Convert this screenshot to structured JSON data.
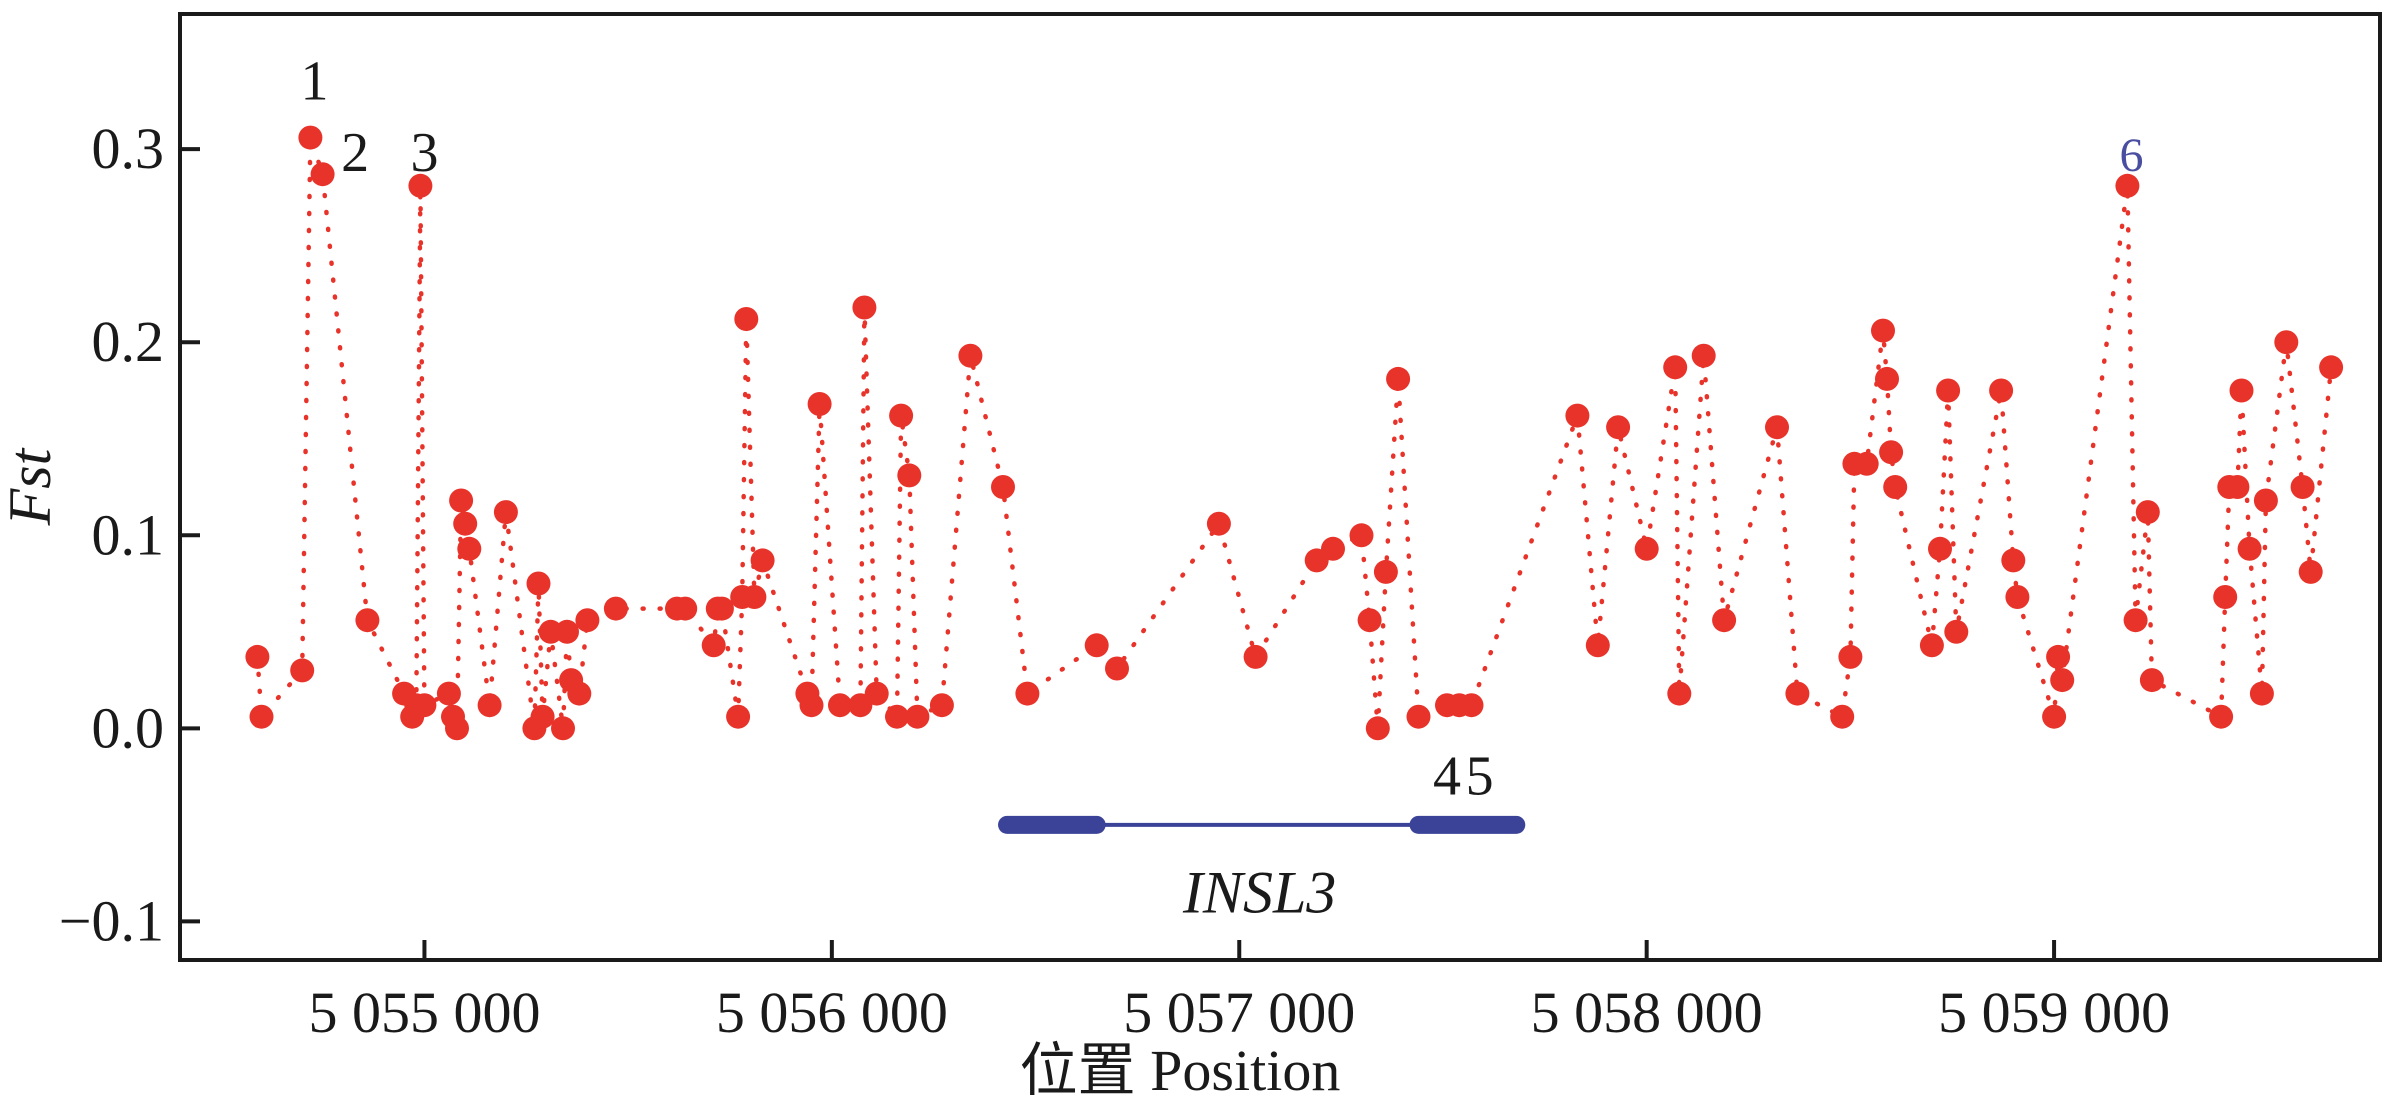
{
  "chart_data": {
    "type": "scatter",
    "title": "",
    "xlabel": "位置  Position",
    "ylabel": "Fst",
    "xlim": [
      5054400,
      5059800
    ],
    "ylim": [
      -0.12,
      0.37
    ],
    "xticks": [
      5055000,
      5056000,
      5057000,
      5058000,
      5059000
    ],
    "xtick_labels": [
      "5 055 000",
      "5 056 000",
      "5 057 000",
      "5 058 000",
      "5 059 000"
    ],
    "yticks": [
      -0.1,
      0.0,
      0.1,
      0.2,
      0.3
    ],
    "ytick_labels": [
      "−0.1",
      "0.0",
      "0.1",
      "0.2",
      "0.3"
    ],
    "series": [
      {
        "name": "Fst",
        "color": "#e8332a",
        "line_style": "dotted",
        "x": [
          5054590,
          5054600,
          5054700,
          5054720,
          5054750,
          5054860,
          5054950,
          5054970,
          5054980,
          5054990,
          5055000,
          5055060,
          5055070,
          5055080,
          5055090,
          5055100,
          5055110,
          5055160,
          5055200,
          5055270,
          5055280,
          5055290,
          5055310,
          5055340,
          5055350,
          5055360,
          5055380,
          5055400,
          5055470,
          5055620,
          5055640,
          5055710,
          5055720,
          5055730,
          5055770,
          5055780,
          5055790,
          5055810,
          5055830,
          5055940,
          5055950,
          5055970,
          5056020,
          5056070,
          5056080,
          5056110,
          5056160,
          5056170,
          5056190,
          5056210,
          5056270,
          5056340,
          5056420,
          5056480,
          5056650,
          5056700,
          5056950,
          5057040,
          5057190,
          5057230,
          5057300,
          5057320,
          5057340,
          5057360,
          5057390,
          5057440,
          5057510,
          5057540,
          5057570,
          5057830,
          5057880,
          5057930,
          5058000,
          5058070,
          5058080,
          5058140,
          5058190,
          5058320,
          5058370,
          5058480,
          5058500,
          5058510,
          5058540,
          5058580,
          5058590,
          5058600,
          5058610,
          5058700,
          5058720,
          5058740,
          5058760,
          5058870,
          5058900,
          5058910,
          5059000,
          5059010,
          5059020,
          5059180,
          5059200,
          5059230,
          5059240,
          5059410,
          5059420,
          5059430,
          5059450,
          5059460,
          5059480,
          5059510,
          5059520,
          5059570,
          5059610,
          5059630,
          5059680
        ],
        "y": [
          0.037,
          0.006,
          0.03,
          0.306,
          0.287,
          0.056,
          0.018,
          0.006,
          0.012,
          0.281,
          0.012,
          0.018,
          0.006,
          0.0,
          0.118,
          0.106,
          0.093,
          0.012,
          0.112,
          0.0,
          0.075,
          0.006,
          0.05,
          0.0,
          0.05,
          0.025,
          0.018,
          0.056,
          0.062,
          0.062,
          0.062,
          0.043,
          0.062,
          0.062,
          0.006,
          0.068,
          0.212,
          0.068,
          0.087,
          0.018,
          0.012,
          0.168,
          0.012,
          0.012,
          0.218,
          0.018,
          0.006,
          0.162,
          0.131,
          0.006,
          0.012,
          0.193,
          0.125,
          0.018,
          0.043,
          0.031,
          0.106,
          0.037,
          0.087,
          0.093,
          0.1,
          0.056,
          0.0,
          0.081,
          0.181,
          0.006,
          0.012,
          0.012,
          0.012,
          0.162,
          0.043,
          0.156,
          0.093,
          0.187,
          0.018,
          0.193,
          0.056,
          0.156,
          0.018,
          0.006,
          0.037,
          0.137,
          0.137,
          0.206,
          0.181,
          0.143,
          0.125,
          0.043,
          0.093,
          0.175,
          0.05,
          0.175,
          0.087,
          0.068,
          0.006,
          0.037,
          0.025,
          0.281,
          0.056,
          0.112,
          0.025,
          0.006,
          0.068,
          0.125,
          0.125,
          0.175,
          0.093,
          0.018,
          0.118,
          0.2,
          0.125,
          0.081,
          0.187
        ]
      }
    ],
    "annotations": [
      {
        "text": "1",
        "x": 5054730,
        "y": 0.335,
        "color": "#1a1a1a"
      },
      {
        "text": "2",
        "x": 5054830,
        "y": 0.298,
        "color": "#1a1a1a"
      },
      {
        "text": "3",
        "x": 5055000,
        "y": 0.298,
        "color": "#1a1a1a"
      },
      {
        "text": "4",
        "x": 5057510,
        "y": -0.025,
        "color": "#1a1a1a"
      },
      {
        "text": "5",
        "x": 5057590,
        "y": -0.025,
        "color": "#1a1a1a"
      },
      {
        "text": "6",
        "x": 5059190,
        "y": 0.298,
        "color": "#4a4ea0"
      }
    ],
    "gene": {
      "name": "INSL3",
      "color": "#3b4399",
      "y": -0.05,
      "start": 5056430,
      "end": 5057680,
      "exons": [
        [
          5056430,
          5056650
        ],
        [
          5057440,
          5057680
        ]
      ],
      "label_x": 5057050,
      "label_y": -0.085
    }
  }
}
